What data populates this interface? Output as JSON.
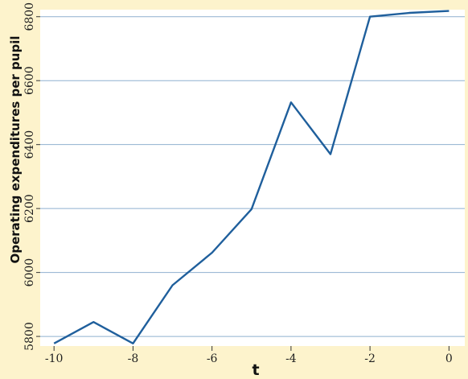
{
  "chart_data": {
    "type": "line",
    "title": "",
    "xlabel": "t",
    "ylabel": "Operating expenditures per pupil",
    "xlim": [
      -10.35,
      0.4
    ],
    "ylim": [
      5770,
      6822
    ],
    "x_ticks": [
      -10,
      -8,
      -6,
      -4,
      -2,
      0
    ],
    "x_tick_labels": [
      "-10",
      "-8",
      "-6",
      "-4",
      "-2",
      "0"
    ],
    "y_ticks": [
      5800,
      6000,
      6200,
      6400,
      6600,
      6800
    ],
    "y_tick_labels": [
      "5800",
      "6000",
      "6200",
      "6400",
      "6600",
      "6800"
    ],
    "grid": "horizontal",
    "colors": {
      "background": "#fdf3cc",
      "plot_area": "#ffffff",
      "grid": "#8fb0cf",
      "line": "#1f5f9c"
    },
    "series": [
      {
        "x": [
          -10,
          -9,
          -8,
          -7,
          -6,
          -5,
          -4,
          -3,
          -2,
          -1,
          0
        ],
        "y": [
          5778,
          5845,
          5778,
          5960,
          6062,
          6198,
          6532,
          6370,
          6800,
          6812,
          6818
        ]
      }
    ]
  }
}
